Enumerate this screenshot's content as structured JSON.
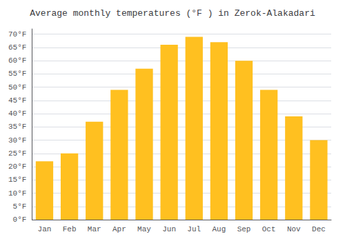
{
  "chart_data": {
    "type": "bar",
    "title": "Average monthly temperatures (°F ) in Zerok-Alakadari",
    "categories": [
      "Jan",
      "Feb",
      "Mar",
      "Apr",
      "May",
      "Jun",
      "Jul",
      "Aug",
      "Sep",
      "Oct",
      "Nov",
      "Dec"
    ],
    "values": [
      22,
      25,
      37,
      49,
      57,
      66,
      69,
      67,
      60,
      49,
      39,
      30
    ],
    "color": "#FFC020",
    "ylim": [
      0,
      72
    ],
    "yticks": [
      {
        "value": 0,
        "label": "0°F"
      },
      {
        "value": 5,
        "label": "5°F"
      },
      {
        "value": 10,
        "label": "10°F"
      },
      {
        "value": 15,
        "label": "15°F"
      },
      {
        "value": 20,
        "label": "20°F"
      },
      {
        "value": 25,
        "label": "25°F"
      },
      {
        "value": 30,
        "label": "30°F"
      },
      {
        "value": 35,
        "label": "35°F"
      },
      {
        "value": 40,
        "label": "40°F"
      },
      {
        "value": 45,
        "label": "45°F"
      },
      {
        "value": 50,
        "label": "50°F"
      },
      {
        "value": 55,
        "label": "55°F"
      },
      {
        "value": 60,
        "label": "60°F"
      },
      {
        "value": 65,
        "label": "65°F"
      },
      {
        "value": 70,
        "label": "70°F"
      }
    ],
    "grid": true
  }
}
